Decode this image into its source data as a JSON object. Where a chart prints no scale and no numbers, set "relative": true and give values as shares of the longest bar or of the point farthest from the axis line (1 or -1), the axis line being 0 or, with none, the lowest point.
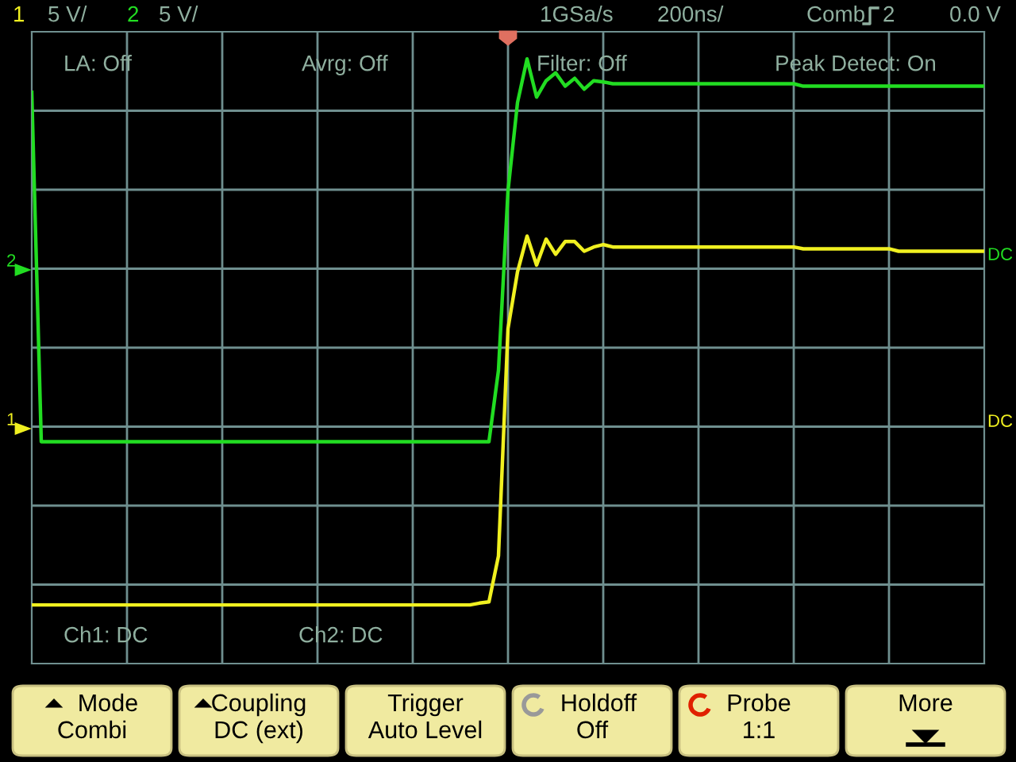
{
  "chart_data": {
    "type": "line",
    "relative": true,
    "grid": true,
    "legend": "left",
    "marker": "none",
    "line_style": "solid",
    "categories": [
      null,
      null,
      null,
      null,
      null,
      null,
      null,
      null,
      null,
      null,
      null,
      null,
      null,
      null,
      null,
      null,
      null,
      null,
      null,
      null,
      null,
      null,
      null,
      null,
      null,
      null,
      null,
      null,
      null,
      null,
      null,
      null,
      null,
      null,
      null,
      null,
      null,
      null,
      null,
      null,
      null,
      null,
      null,
      null,
      null,
      null,
      null,
      null,
      null,
      null,
      null,
      null,
      null,
      null,
      null,
      null,
      null,
      null,
      null,
      null,
      null,
      null,
      null,
      null,
      null,
      null,
      null,
      null,
      null,
      null,
      null,
      null,
      null,
      null,
      null,
      null,
      null,
      null,
      null,
      null,
      null,
      null,
      null,
      null,
      null,
      null,
      null,
      null,
      null,
      null,
      null,
      null,
      null,
      null,
      null,
      null,
      null,
      null,
      null,
      null,
      null
    ],
    "annotations": [
      "1",
      "5 V/",
      "2",
      "5 V/",
      "1GSa/s",
      "200ns/",
      "Comb",
      "2",
      "0.0 V",
      "LA: Off",
      "Avrg: Off",
      "Filter: Off",
      "Peak Detect: On",
      "Ch1: DC",
      "Ch2: DC",
      "DC",
      "DC",
      "Mode",
      "Combi",
      "Coupling",
      "DC (ext)",
      "Trigger",
      "Auto Level",
      "Holdoff",
      "Off",
      "Probe",
      "1:1",
      "More"
    ],
    "series": [
      {
        "name": "1",
        "color": "#f0f020",
        "values": [
          0.097,
          0.097,
          0.097,
          0.097,
          0.097,
          0.097,
          0.097,
          0.097,
          0.097,
          0.097,
          0.097,
          0.097,
          0.097,
          0.097,
          0.097,
          0.097,
          0.097,
          0.097,
          0.097,
          0.097,
          0.097,
          0.097,
          0.097,
          0.097,
          0.097,
          0.097,
          0.097,
          0.097,
          0.097,
          0.097,
          0.097,
          0.097,
          0.097,
          0.097,
          0.097,
          0.097,
          0.097,
          0.097,
          0.097,
          0.097,
          0.097,
          0.097,
          0.097,
          0.097,
          0.097,
          0.097,
          0.097,
          0.1,
          0.102,
          0.178,
          0.554,
          0.648,
          0.707,
          0.659,
          0.702,
          0.677,
          0.698,
          0.698,
          0.682,
          0.689,
          0.693,
          0.689,
          0.689,
          0.689,
          0.689,
          0.689,
          0.689,
          0.689,
          0.689,
          0.689,
          0.689,
          0.689,
          0.689,
          0.689,
          0.689,
          0.689,
          0.689,
          0.689,
          0.689,
          0.689,
          0.689,
          0.686,
          0.686,
          0.686,
          0.686,
          0.686,
          0.686,
          0.686,
          0.686,
          0.686,
          0.686,
          0.682,
          0.682,
          0.682,
          0.682,
          0.682,
          0.682,
          0.682,
          0.682,
          0.682,
          0.682
        ]
      },
      {
        "name": "2",
        "color": "#22dd22",
        "values": [
          0.945,
          0.367,
          0.367,
          0.367,
          0.367,
          0.367,
          0.367,
          0.367,
          0.367,
          0.367,
          0.367,
          0.367,
          0.367,
          0.367,
          0.367,
          0.367,
          0.367,
          0.367,
          0.367,
          0.367,
          0.367,
          0.367,
          0.367,
          0.367,
          0.367,
          0.367,
          0.367,
          0.367,
          0.367,
          0.367,
          0.367,
          0.367,
          0.367,
          0.367,
          0.367,
          0.367,
          0.367,
          0.367,
          0.367,
          0.367,
          0.367,
          0.367,
          0.367,
          0.367,
          0.367,
          0.367,
          0.367,
          0.367,
          0.367,
          0.485,
          0.782,
          0.928,
          1,
          0.937,
          0.964,
          0.977,
          0.955,
          0.968,
          0.95,
          0.964,
          0.962,
          0.959,
          0.959,
          0.959,
          0.959,
          0.959,
          0.959,
          0.959,
          0.959,
          0.959,
          0.959,
          0.959,
          0.959,
          0.959,
          0.959,
          0.959,
          0.959,
          0.959,
          0.959,
          0.959,
          0.959,
          0.955,
          0.955,
          0.955,
          0.955,
          0.955,
          0.955,
          0.955,
          0.955,
          0.955,
          0.955,
          0.955,
          0.955,
          0.955,
          0.955,
          0.955,
          0.955,
          0.955,
          0.955,
          0.955,
          0.955
        ]
      }
    ]
  }
}
